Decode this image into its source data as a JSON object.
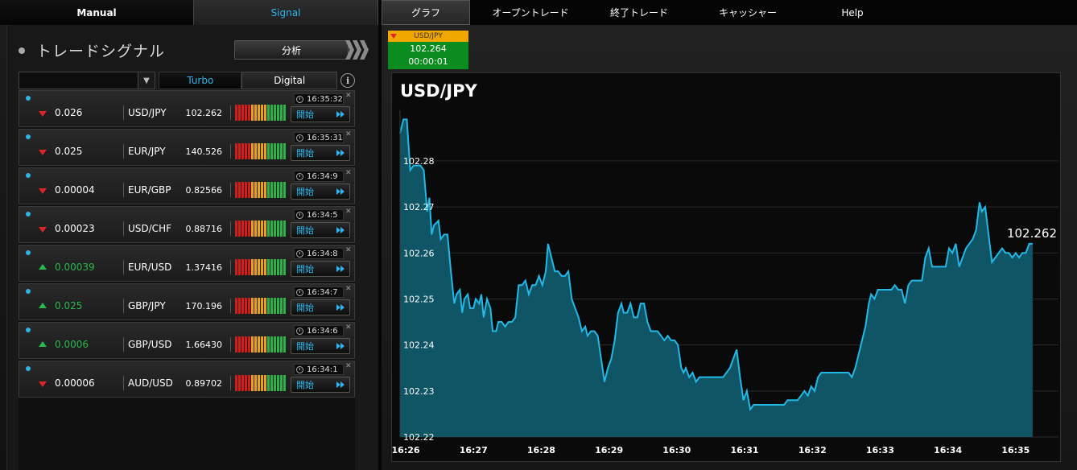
{
  "left": {
    "tabs": {
      "manual": "Manual",
      "signal": "Signal"
    },
    "heading": "トレードシグナル",
    "analyze_button": "分析",
    "filters": {
      "turbo": "Turbo",
      "digital": "Digital"
    },
    "start_label": "開始",
    "signals": [
      {
        "direction": "down",
        "change": "0.026",
        "pair": "USD/JPY",
        "rate": "102.262",
        "time": "16:35:32",
        "strength": [
          3,
          3,
          3,
          3,
          3,
          3,
          3,
          3,
          3,
          3,
          3,
          3,
          3,
          3,
          3,
          3
        ]
      },
      {
        "direction": "down",
        "change": "0.025",
        "pair": "EUR/JPY",
        "rate": "140.526",
        "time": "16:35:31",
        "strength": [
          3,
          3,
          3,
          3,
          3,
          3,
          3,
          3,
          3,
          3,
          3,
          3,
          3,
          3,
          3,
          3
        ]
      },
      {
        "direction": "down",
        "change": "0.00004",
        "pair": "EUR/GBP",
        "rate": "0.82566",
        "time": "16:34:9",
        "strength": [
          3,
          3,
          3,
          3,
          3,
          3,
          3,
          3,
          3,
          3,
          3,
          3,
          3,
          3,
          3,
          3
        ]
      },
      {
        "direction": "down",
        "change": "0.00023",
        "pair": "USD/CHF",
        "rate": "0.88716",
        "time": "16:34:5",
        "strength": [
          3,
          3,
          3,
          3,
          3,
          3,
          3,
          3,
          3,
          3,
          3,
          3,
          3,
          3,
          3,
          3
        ]
      },
      {
        "direction": "up",
        "change": "0.00039",
        "pair": "EUR/USD",
        "rate": "1.37416",
        "time": "16:34:8",
        "strength": [
          3,
          3,
          3,
          3,
          3,
          3,
          3,
          3,
          3,
          3,
          3,
          3,
          3,
          3,
          3,
          3
        ]
      },
      {
        "direction": "up",
        "change": "0.025",
        "pair": "GBP/JPY",
        "rate": "170.196",
        "time": "16:34:7",
        "strength": [
          3,
          3,
          3,
          3,
          3,
          3,
          3,
          3,
          3,
          3,
          3,
          3,
          3,
          3,
          3,
          3
        ]
      },
      {
        "direction": "up",
        "change": "0.0006",
        "pair": "GBP/USD",
        "rate": "1.66430",
        "time": "16:34:6",
        "strength": [
          3,
          3,
          3,
          3,
          3,
          3,
          3,
          3,
          3,
          3,
          3,
          3,
          3,
          3,
          3,
          3
        ]
      },
      {
        "direction": "down",
        "change": "0.00006",
        "pair": "AUD/USD",
        "rate": "0.89702",
        "time": "16:34:1",
        "strength": [
          3,
          3,
          3,
          3,
          3,
          3,
          3,
          3,
          3,
          3,
          3,
          3,
          3,
          3,
          3,
          3
        ]
      }
    ]
  },
  "right": {
    "nav": [
      "グラフ",
      "オープントレード",
      "終了トレード",
      "キャッシャー",
      "Help"
    ],
    "ticker": {
      "pair": "USD/JPY",
      "rate": "102.264",
      "timer": "00:00:01"
    }
  },
  "colors": {
    "accent": "#2bb5ec",
    "down": "#e02323",
    "up": "#27b84a",
    "ticker_head": "#f2a600",
    "ticker_body": "#0b8c1e",
    "line": "#22b8e8",
    "area": "#0f5565"
  },
  "chart_data": {
    "type": "area",
    "title": "USD/JPY",
    "last_value_label": "102.262",
    "ylim": [
      102.22,
      102.291
    ],
    "yticks": [
      "102.22",
      "102.23",
      "102.24",
      "102.25",
      "102.26",
      "102.27",
      "102.28"
    ],
    "xticks": [
      "16:26",
      "16:27",
      "16:28",
      "16:29",
      "16:30",
      "16:31",
      "16:32",
      "16:33",
      "16:34",
      "16:35"
    ],
    "x_start": "16:25:55",
    "series": [
      {
        "points": [
          [
            "16:25:55",
            102.286
          ],
          [
            "16:25:58",
            102.289
          ],
          [
            "16:26:01",
            102.289
          ],
          [
            "16:26:04",
            102.278
          ],
          [
            "16:26:07",
            102.279
          ],
          [
            "16:26:13",
            102.279
          ],
          [
            "16:26:16",
            102.278
          ],
          [
            "16:26:19",
            102.269
          ],
          [
            "16:26:21",
            102.272
          ],
          [
            "16:26:23",
            102.264
          ],
          [
            "16:26:25",
            102.266
          ],
          [
            "16:26:29",
            102.267
          ],
          [
            "16:26:31",
            102.263
          ],
          [
            "16:26:34",
            102.264
          ],
          [
            "16:26:37",
            102.264
          ],
          [
            "16:26:40",
            102.256
          ],
          [
            "16:26:43",
            102.249
          ],
          [
            "16:26:45",
            102.251
          ],
          [
            "16:26:48",
            102.252
          ],
          [
            "16:26:50",
            102.247
          ],
          [
            "16:26:52",
            102.25
          ],
          [
            "16:26:55",
            102.251
          ],
          [
            "16:26:57",
            102.248
          ],
          [
            "16:27:00",
            102.248
          ],
          [
            "16:27:02",
            102.25
          ],
          [
            "16:27:05",
            102.249
          ],
          [
            "16:27:07",
            102.251
          ],
          [
            "16:27:09",
            102.246
          ],
          [
            "16:27:12",
            102.25
          ],
          [
            "16:27:15",
            102.248
          ],
          [
            "16:27:17",
            102.243
          ],
          [
            "16:27:20",
            102.243
          ],
          [
            "16:27:22",
            102.245
          ],
          [
            "16:27:25",
            102.245
          ],
          [
            "16:27:28",
            102.244
          ],
          [
            "16:27:31",
            102.245
          ],
          [
            "16:27:34",
            102.245
          ],
          [
            "16:27:37",
            102.246
          ],
          [
            "16:27:40",
            102.253
          ],
          [
            "16:27:43",
            102.253
          ],
          [
            "16:27:46",
            102.254
          ],
          [
            "16:27:49",
            102.251
          ],
          [
            "16:27:52",
            102.253
          ],
          [
            "16:27:55",
            102.253
          ],
          [
            "16:27:58",
            102.255
          ],
          [
            "16:28:01",
            102.253
          ],
          [
            "16:28:04",
            102.256
          ],
          [
            "16:28:06",
            102.262
          ],
          [
            "16:28:09",
            102.259
          ],
          [
            "16:28:12",
            102.256
          ],
          [
            "16:28:15",
            102.256
          ],
          [
            "16:28:18",
            102.255
          ],
          [
            "16:28:21",
            102.255
          ],
          [
            "16:28:24",
            102.256
          ],
          [
            "16:28:27",
            102.25
          ],
          [
            "16:28:30",
            102.248
          ],
          [
            "16:28:33",
            102.246
          ],
          [
            "16:28:36",
            102.243
          ],
          [
            "16:28:39",
            102.244
          ],
          [
            "16:28:41",
            102.242
          ],
          [
            "16:28:44",
            102.243
          ],
          [
            "16:28:47",
            102.243
          ],
          [
            "16:28:50",
            102.242
          ],
          [
            "16:28:53",
            102.237
          ],
          [
            "16:28:56",
            102.232
          ],
          [
            "16:28:59",
            102.235
          ],
          [
            "16:29:02",
            102.237
          ],
          [
            "16:29:05",
            102.241
          ],
          [
            "16:29:08",
            102.247
          ],
          [
            "16:29:11",
            102.249
          ],
          [
            "16:29:13",
            102.247
          ],
          [
            "16:29:16",
            102.247
          ],
          [
            "16:29:19",
            102.249
          ],
          [
            "16:29:22",
            102.246
          ],
          [
            "16:29:25",
            102.246
          ],
          [
            "16:29:28",
            102.249
          ],
          [
            "16:29:31",
            102.249
          ],
          [
            "16:29:34",
            102.245
          ],
          [
            "16:29:37",
            102.243
          ],
          [
            "16:29:40",
            102.243
          ],
          [
            "16:29:43",
            102.243
          ],
          [
            "16:29:46",
            102.242
          ],
          [
            "16:29:49",
            102.241
          ],
          [
            "16:29:52",
            102.242
          ],
          [
            "16:29:55",
            102.241
          ],
          [
            "16:29:58",
            102.241
          ],
          [
            "16:30:01",
            102.24
          ],
          [
            "16:30:04",
            102.235
          ],
          [
            "16:30:06",
            102.234
          ],
          [
            "16:30:08",
            102.235
          ],
          [
            "16:30:11",
            102.233
          ],
          [
            "16:30:14",
            102.234
          ],
          [
            "16:30:17",
            102.232
          ],
          [
            "16:30:20",
            102.233
          ],
          [
            "16:30:23",
            102.233
          ],
          [
            "16:30:26",
            102.233
          ],
          [
            "16:30:29",
            102.233
          ],
          [
            "16:30:32",
            102.233
          ],
          [
            "16:30:35",
            102.233
          ],
          [
            "16:30:38",
            102.233
          ],
          [
            "16:30:41",
            102.233
          ],
          [
            "16:30:44",
            102.234
          ],
          [
            "16:30:47",
            102.235
          ],
          [
            "16:30:50",
            102.237
          ],
          [
            "16:30:53",
            102.239
          ],
          [
            "16:30:56",
            102.233
          ],
          [
            "16:30:59",
            102.228
          ],
          [
            "16:31:02",
            102.23
          ],
          [
            "16:31:05",
            102.226
          ],
          [
            "16:31:08",
            102.227
          ],
          [
            "16:31:11",
            102.227
          ],
          [
            "16:31:14",
            102.227
          ],
          [
            "16:31:17",
            102.227
          ],
          [
            "16:31:20",
            102.227
          ],
          [
            "16:31:23",
            102.227
          ],
          [
            "16:31:26",
            102.227
          ],
          [
            "16:31:29",
            102.227
          ],
          [
            "16:31:32",
            102.227
          ],
          [
            "16:31:35",
            102.227
          ],
          [
            "16:31:38",
            102.228
          ],
          [
            "16:31:41",
            102.228
          ],
          [
            "16:31:44",
            102.228
          ],
          [
            "16:31:47",
            102.228
          ],
          [
            "16:31:50",
            102.229
          ],
          [
            "16:31:53",
            102.23
          ],
          [
            "16:31:56",
            102.229
          ],
          [
            "16:31:59",
            102.231
          ],
          [
            "16:32:02",
            102.23
          ],
          [
            "16:32:05",
            102.233
          ],
          [
            "16:32:08",
            102.234
          ],
          [
            "16:32:11",
            102.234
          ],
          [
            "16:32:14",
            102.234
          ],
          [
            "16:32:17",
            102.234
          ],
          [
            "16:32:20",
            102.234
          ],
          [
            "16:32:23",
            102.234
          ],
          [
            "16:32:26",
            102.234
          ],
          [
            "16:32:29",
            102.234
          ],
          [
            "16:32:32",
            102.234
          ],
          [
            "16:32:35",
            102.233
          ],
          [
            "16:32:38",
            102.235
          ],
          [
            "16:32:41",
            102.238
          ],
          [
            "16:32:44",
            102.241
          ],
          [
            "16:32:47",
            102.244
          ],
          [
            "16:32:50",
            102.249
          ],
          [
            "16:32:52",
            102.251
          ],
          [
            "16:32:55",
            102.25
          ],
          [
            "16:32:58",
            102.252
          ],
          [
            "16:33:01",
            102.252
          ],
          [
            "16:33:04",
            102.252
          ],
          [
            "16:33:07",
            102.252
          ],
          [
            "16:33:10",
            102.252
          ],
          [
            "16:33:13",
            102.253
          ],
          [
            "16:33:16",
            102.252
          ],
          [
            "16:33:19",
            102.252
          ],
          [
            "16:33:22",
            102.249
          ],
          [
            "16:33:25",
            102.253
          ],
          [
            "16:33:28",
            102.254
          ],
          [
            "16:33:31",
            102.254
          ],
          [
            "16:33:34",
            102.254
          ],
          [
            "16:33:37",
            102.254
          ],
          [
            "16:33:40",
            102.259
          ],
          [
            "16:33:43",
            102.261
          ],
          [
            "16:33:46",
            102.257
          ],
          [
            "16:33:49",
            102.257
          ],
          [
            "16:33:52",
            102.257
          ],
          [
            "16:33:55",
            102.257
          ],
          [
            "16:33:58",
            102.257
          ],
          [
            "16:34:01",
            102.261
          ],
          [
            "16:34:04",
            102.26
          ],
          [
            "16:34:07",
            102.262
          ],
          [
            "16:34:10",
            102.257
          ],
          [
            "16:34:13",
            102.259
          ],
          [
            "16:34:16",
            102.261
          ],
          [
            "16:34:19",
            102.262
          ],
          [
            "16:34:22",
            102.263
          ],
          [
            "16:34:25",
            102.265
          ],
          [
            "16:34:28",
            102.271
          ],
          [
            "16:34:30",
            102.269
          ],
          [
            "16:34:33",
            102.27
          ],
          [
            "16:34:36",
            102.264
          ],
          [
            "16:34:39",
            102.258
          ],
          [
            "16:34:42",
            102.259
          ],
          [
            "16:34:45",
            102.26
          ],
          [
            "16:34:48",
            102.261
          ],
          [
            "16:34:51",
            102.26
          ],
          [
            "16:34:54",
            102.26
          ],
          [
            "16:34:57",
            102.259
          ],
          [
            "16:35:00",
            102.26
          ],
          [
            "16:35:03",
            102.259
          ],
          [
            "16:35:06",
            102.26
          ],
          [
            "16:35:09",
            102.26
          ],
          [
            "16:35:12",
            102.262
          ],
          [
            "16:35:15",
            102.262
          ]
        ]
      }
    ],
    "grid": true
  }
}
